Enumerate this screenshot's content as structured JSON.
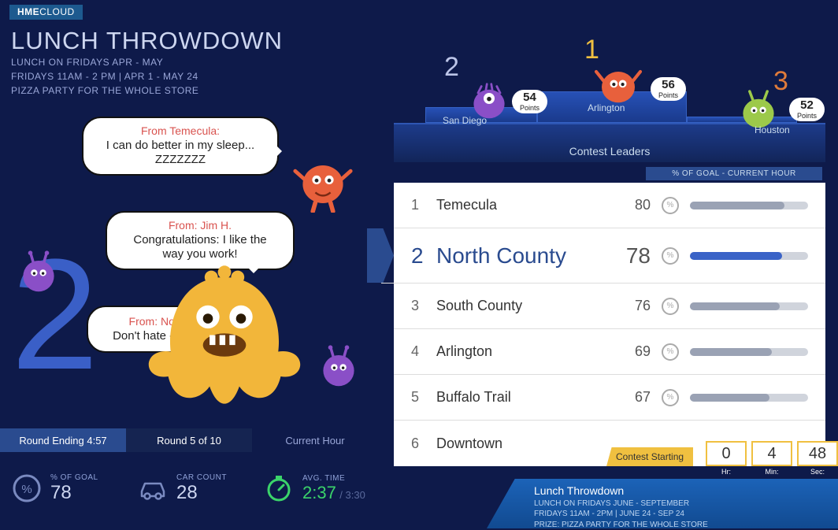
{
  "brand": {
    "bold": "HME",
    "thin": "CLOUD"
  },
  "header": {
    "title": "LUNCH THROWDOWN",
    "line1": "LUNCH ON FRIDAYS APR - MAY",
    "line2": "FRIDAYS 11AM - 2 PM | APR 1 - MAY 24",
    "line3": "PIZZA PARTY FOR THE WHOLE STORE"
  },
  "chat": {
    "b1": {
      "from": "From Temecula:",
      "msg": "I can do better in my sleep... ZZZZZZZ"
    },
    "b2": {
      "from": "From: Jim H.",
      "msg": "Congratulations: I like the way you work!"
    },
    "b3": {
      "from": "From: North County",
      "msg": "Don't hate - congratulate"
    }
  },
  "big_rank": "2",
  "tabs": {
    "a": "Round Ending 4:57",
    "b": "Round 5 of 10",
    "c": "Current Hour"
  },
  "stats": {
    "goal": {
      "label": "% OF GOAL",
      "value": "78"
    },
    "cars": {
      "label": "CAR COUNT",
      "value": "28"
    },
    "avg": {
      "label": "AVG. TIME",
      "value": "2:37",
      "target": "/ 3:30"
    }
  },
  "podium": {
    "caption": "Contest Leaders",
    "pts_label": "Points",
    "p1": {
      "rank": "1",
      "name": "Arlington",
      "points": "56",
      "color": "#e8603c"
    },
    "p2": {
      "rank": "2",
      "name": "San Diego",
      "points": "54",
      "color": "#8a4fc7"
    },
    "p3": {
      "rank": "3",
      "name": "Houston",
      "points": "52",
      "color": "#9cc94a"
    }
  },
  "list": {
    "header": "% OF GOAL - CURRENT HOUR",
    "bar_bg": "#d0d4dc",
    "bar_default": "#9aa2b4",
    "bar_highlight": "#3a63c7",
    "rows": [
      {
        "rank": "1",
        "name": "Temecula",
        "pct": "80",
        "hl": false
      },
      {
        "rank": "2",
        "name": "North County",
        "pct": "78",
        "hl": true
      },
      {
        "rank": "3",
        "name": "South County",
        "pct": "76",
        "hl": false
      },
      {
        "rank": "4",
        "name": "Arlington",
        "pct": "69",
        "hl": false
      },
      {
        "rank": "5",
        "name": "Buffalo Trail",
        "pct": "67",
        "hl": false
      },
      {
        "rank": "6",
        "name": "Downtown",
        "pct": "",
        "hl": false
      }
    ]
  },
  "countdown": {
    "label": "Contest Starting",
    "hr": {
      "v": "0",
      "l": "Hr:"
    },
    "min": {
      "v": "4",
      "l": "Min:"
    },
    "sec": {
      "v": "48",
      "l": "Sec:"
    }
  },
  "next": {
    "title": "Lunch Throwdown",
    "l1": "LUNCH ON FRIDAYS JUNE - SEPTEMBER",
    "l2": "FRIDAYS 11AM - 2PM | JUNE 24 - SEP 24",
    "l3": "PRIZE: PIZZA PARTY FOR THE WHOLE STORE"
  },
  "monsters": {
    "orange": "#e8603c",
    "yellow": "#f2b63a",
    "purple": "#8a4fc7",
    "green": "#9cc94a"
  }
}
